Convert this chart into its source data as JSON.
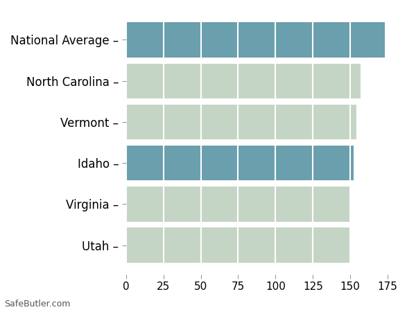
{
  "categories": [
    "Utah",
    "Virginia",
    "Idaho",
    "Vermont",
    "North Carolina",
    "National Average"
  ],
  "values": [
    150,
    150,
    152,
    154,
    157,
    173
  ],
  "bar_colors": [
    "#c5d5c5",
    "#c5d5c5",
    "#6a9fad",
    "#c5d5c5",
    "#c5d5c5",
    "#6a9fad"
  ],
  "xlim": [
    0,
    187
  ],
  "xticks": [
    0,
    25,
    50,
    75,
    100,
    125,
    150,
    175
  ],
  "background_color": "#ffffff",
  "grid_color": "#ffffff",
  "watermark": "SafeButler.com",
  "bar_height": 0.85,
  "tick_fontsize": 11,
  "label_fontsize": 12,
  "ytick_labels": [
    "Utah –",
    "Virginia –",
    "Idaho –",
    "Vermont –",
    "North Carolina –",
    "National Average –"
  ]
}
